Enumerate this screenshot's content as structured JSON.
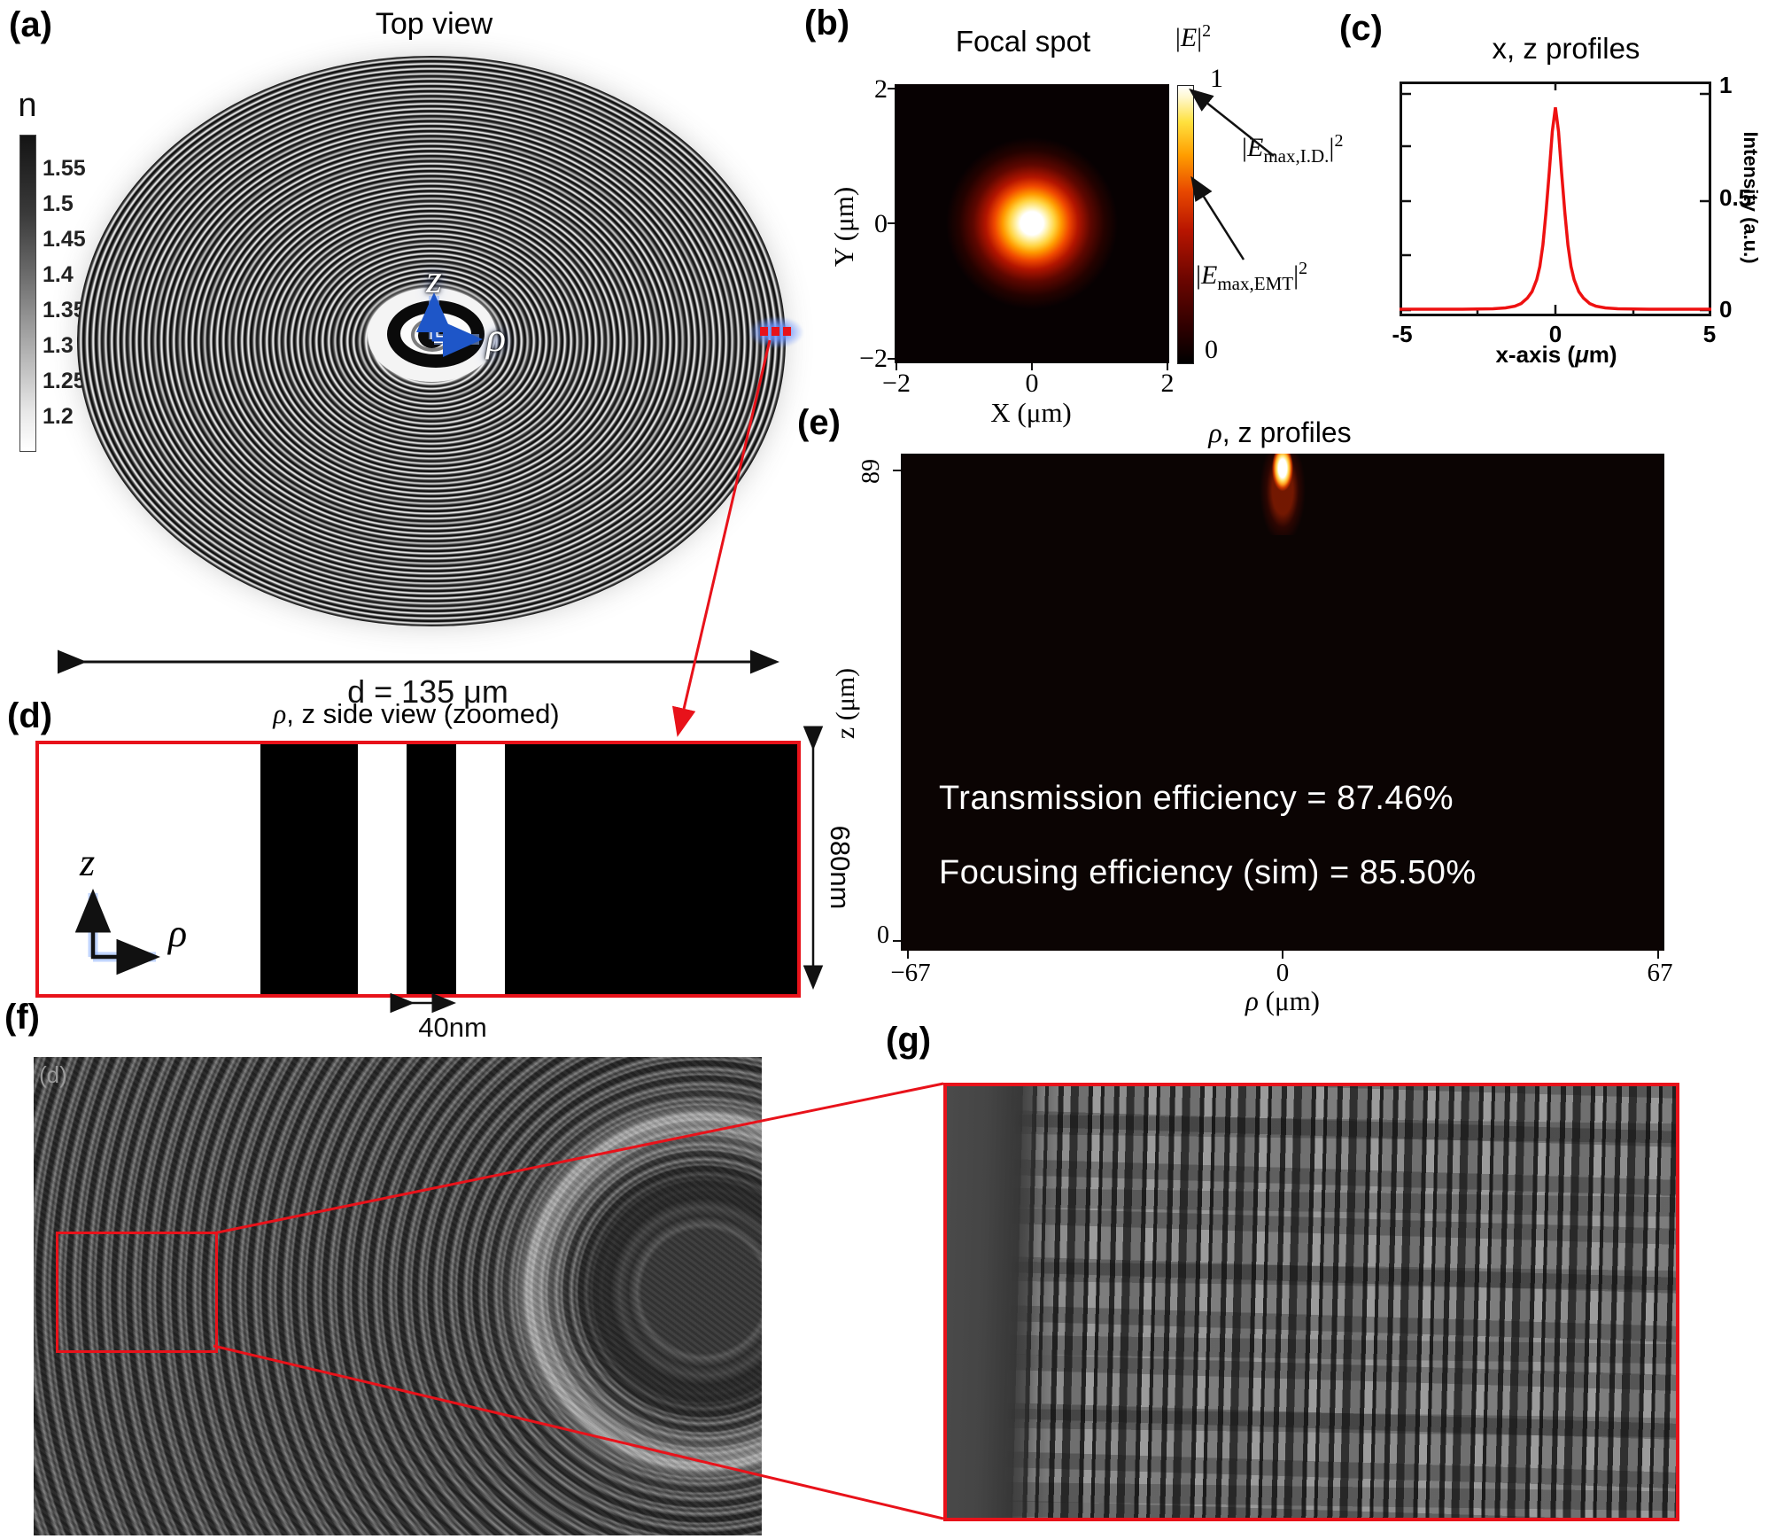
{
  "figure": {
    "panel_a": {
      "label": "(a)",
      "title": "Top view",
      "colorbar": {
        "label": "n",
        "ticks": [
          "1.55",
          "1.5",
          "1.45",
          "1.4",
          "1.35",
          "1.3",
          "1.25",
          "1.2"
        ]
      },
      "axes": {
        "z": "z",
        "rho": "ρ"
      },
      "diameter": "d = 135 μm"
    },
    "panel_b": {
      "label": "(b)",
      "title": "Focal spot",
      "xlabel": "X (μm)",
      "ylabel": "Y (μm)",
      "x_ticks": [
        "−2",
        "0",
        "2"
      ],
      "y_ticks": [
        "2",
        "0",
        "−2"
      ],
      "colorbar": {
        "p1": "|",
        "E": "E",
        "p2": "|",
        "sup": "2",
        "tick_top": "1",
        "tick_bottom": "0"
      },
      "ann_id": {
        "p1": "|",
        "E": "E",
        "sub": "max,I.D.",
        "p2": "|",
        "sup": "2"
      },
      "ann_emt": {
        "p1": "|",
        "E": "E",
        "sub": "max,EMT",
        "p2": "|",
        "sup": "2"
      }
    },
    "panel_c": {
      "label": "(c)",
      "title": "x, z profiles",
      "xlabel_pre": "x-axis (",
      "xlabel_mu": "μ",
      "xlabel_post": "m)",
      "ylabel": "Intensity (a.u.)",
      "x_ticks": [
        "-5",
        "0",
        "5"
      ],
      "y_ticks": [
        "1",
        "0.5",
        "0"
      ]
    },
    "panel_d": {
      "label": "(d)",
      "title_rho": "ρ",
      "title_rest": ", z side view (zoomed)",
      "height_label": "680nm",
      "width_label": "40nm",
      "axes": {
        "z": "z",
        "rho": "ρ"
      }
    },
    "panel_e": {
      "label": "(e)",
      "title_rho": "ρ",
      "title_rest": ", z profiles",
      "y_tick_top": "89",
      "y_tick_bottom": "0",
      "ylabel": "z (μm)",
      "x_ticks": [
        "−67",
        "0",
        "67"
      ],
      "xlabel_rho": "ρ",
      "xlabel_rest": " (μm)",
      "line1": "Transmission efficiency = 87.46%",
      "line2": "Focusing efficiency (sim) = 85.50%"
    },
    "panel_f": {
      "label": "(f)",
      "watermark": "(d)"
    },
    "panel_g": {
      "label": "(g)"
    }
  },
  "chart_data": [
    {
      "panel": "a",
      "type": "diagram",
      "title": "Top view",
      "description": "Top view of a Fresnel-zone nanostructured lens, concentric black/white rings",
      "colorbar": {
        "label": "n",
        "ticks": [
          1.55,
          1.5,
          1.45,
          1.4,
          1.35,
          1.3,
          1.25,
          1.2
        ],
        "dark_at_top": true
      },
      "diameter_um": 135
    },
    {
      "panel": "b",
      "type": "heatmap",
      "title": "Focal spot",
      "xlabel": "X (μm)",
      "ylabel": "Y (μm)",
      "xlim": [
        -2,
        2
      ],
      "ylim": [
        -2,
        2
      ],
      "colorbar_label": "|E|^2",
      "colorbar_range": [
        0,
        1
      ],
      "spot": {
        "x": 0,
        "y": 0,
        "peak": 1,
        "fwhm_um": 0.7
      },
      "annotations": [
        "|E_max,I.D.|^2 at colorbar value 1",
        "|E_max,EMT|^2 at colorbar value ~0.67"
      ]
    },
    {
      "panel": "c",
      "type": "line",
      "title": "x, z profiles",
      "xlabel": "x-axis (μm)",
      "ylabel": "Intensity (a.u.)",
      "xlim": [
        -5,
        5
      ],
      "ylim": [
        0,
        1
      ],
      "legend": "none",
      "grid": false,
      "color": "#ee1111",
      "x": [
        -5,
        -4,
        -3,
        -2.5,
        -2,
        -1.6,
        -1.3,
        -1.1,
        -0.9,
        -0.75,
        -0.6,
        -0.5,
        -0.4,
        -0.3,
        -0.2,
        -0.1,
        0,
        0.1,
        0.2,
        0.3,
        0.4,
        0.5,
        0.6,
        0.75,
        0.9,
        1.1,
        1.3,
        1.6,
        2,
        2.5,
        3,
        4,
        5
      ],
      "y": [
        0.004,
        0.004,
        0.004,
        0.005,
        0.006,
        0.01,
        0.018,
        0.03,
        0.055,
        0.085,
        0.14,
        0.2,
        0.3,
        0.45,
        0.63,
        0.82,
        0.93,
        0.82,
        0.63,
        0.45,
        0.3,
        0.2,
        0.14,
        0.085,
        0.055,
        0.03,
        0.018,
        0.01,
        0.006,
        0.005,
        0.004,
        0.004,
        0.004
      ]
    },
    {
      "panel": "e",
      "type": "heatmap",
      "title": "ρ, z profiles",
      "xlabel": "ρ (μm)",
      "ylabel": "z (μm)",
      "xlim": [
        -67,
        67
      ],
      "ylim": [
        0,
        89
      ],
      "x_ticks": [
        -67,
        0,
        67
      ],
      "y_ticks": [
        0,
        89
      ],
      "focus": {
        "rho": 0,
        "z": 89
      },
      "overlay_text": [
        "Transmission efficiency = 87.46%",
        "Focusing efficiency (sim) = 85.50%"
      ]
    }
  ]
}
